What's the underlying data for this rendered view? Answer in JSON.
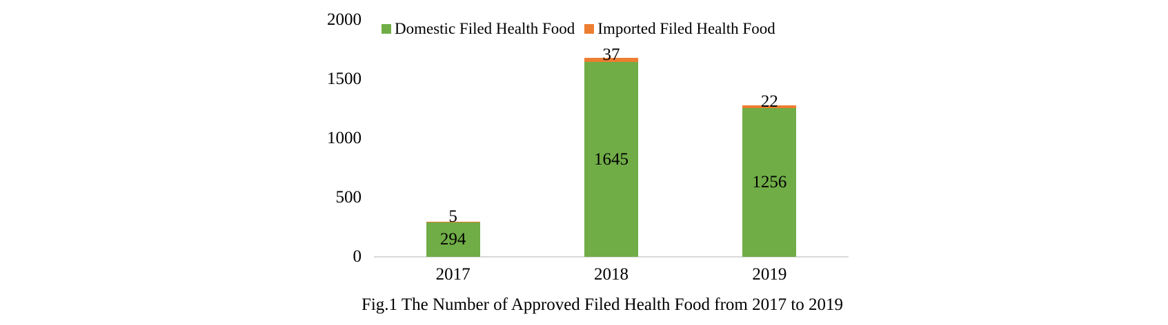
{
  "figure": {
    "caption": "Fig.1 The Number of Approved Filed Health Food from 2017 to 2019"
  },
  "chart_data": {
    "type": "bar",
    "stacked": true,
    "title": "",
    "xlabel": "",
    "ylabel": "",
    "categories": [
      "2017",
      "2018",
      "2019"
    ],
    "series": [
      {
        "name": "Domestic Filed Health Food",
        "color": "#70AD47",
        "values": [
          294,
          1645,
          1256
        ]
      },
      {
        "name": "Imported Filed Health Food",
        "color": "#ED7D31",
        "values": [
          5,
          37,
          22
        ]
      }
    ],
    "ylim": [
      0,
      2000
    ],
    "yticks": [
      0,
      500,
      1000,
      1500,
      2000
    ],
    "grid": false,
    "legend_position": "top",
    "axis_line_color": "#d9d9d9",
    "data_labels": true
  }
}
